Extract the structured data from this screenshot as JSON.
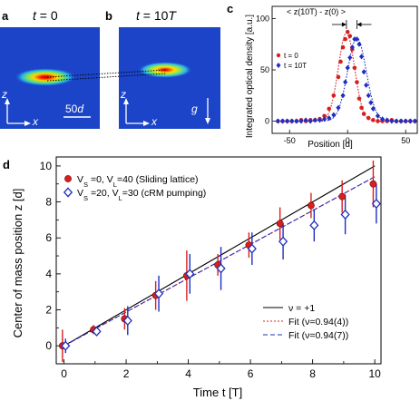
{
  "panel_a": {
    "letter": "a",
    "title_var": "t",
    "title_val": " = 0",
    "axis_z": "z",
    "axis_x": "x",
    "scale_num": "50",
    "scale_unit": "d"
  },
  "panel_b": {
    "letter": "b",
    "title_var": "t",
    "title_val": " = 10",
    "title_unit": "T",
    "axis_z": "z",
    "axis_x": "x",
    "gravity_label": "g"
  },
  "chart_data": [
    {
      "id": "c",
      "type": "line",
      "letter": "c",
      "annotation": "< z(10T) - z(0) >",
      "xlabel": "Position [d]",
      "ylabel": "Integrated optical density [a.u.]",
      "xlim": [
        -65,
        60
      ],
      "ylim": [
        -12,
        112
      ],
      "xticks": [
        -50,
        0,
        50
      ],
      "yticks": [
        0,
        50,
        100
      ],
      "grid": false,
      "legend_position": "top-left",
      "colors": {
        "t0": "#d62020",
        "t10": "#1f2fc0"
      },
      "series": [
        {
          "name": "t = 0",
          "key": "t0",
          "points": [
            [
              -60,
              0
            ],
            [
              -56,
              0
            ],
            [
              -52,
              0
            ],
            [
              -48,
              0
            ],
            [
              -44,
              0
            ],
            [
              -40,
              1
            ],
            [
              -36,
              0
            ],
            [
              -32,
              1
            ],
            [
              -28,
              1
            ],
            [
              -24,
              2
            ],
            [
              -20,
              5
            ],
            [
              -16,
              12
            ],
            [
              -12,
              25
            ],
            [
              -8,
              43
            ],
            [
              -6,
              58
            ],
            [
              -4,
              72
            ],
            [
              -2,
              80
            ],
            [
              0,
              87
            ],
            [
              2,
              83
            ],
            [
              4,
              70
            ],
            [
              6,
              52
            ],
            [
              8,
              38
            ],
            [
              10,
              22
            ],
            [
              12,
              13
            ],
            [
              14,
              7
            ],
            [
              18,
              3
            ],
            [
              22,
              1
            ],
            [
              26,
              0
            ],
            [
              30,
              0
            ],
            [
              34,
              0
            ],
            [
              38,
              1
            ],
            [
              42,
              0
            ],
            [
              46,
              0
            ],
            [
              50,
              0
            ],
            [
              54,
              0
            ],
            [
              58,
              0
            ]
          ],
          "fit_center": -1,
          "fit_sigma": 7,
          "fit_amp": 86
        },
        {
          "name": "t = 10T",
          "key": "t10",
          "points": [
            [
              -60,
              0
            ],
            [
              -56,
              0
            ],
            [
              -52,
              0
            ],
            [
              -48,
              0
            ],
            [
              -44,
              0
            ],
            [
              -40,
              0
            ],
            [
              -36,
              1
            ],
            [
              -32,
              0
            ],
            [
              -28,
              1
            ],
            [
              -24,
              1
            ],
            [
              -20,
              2
            ],
            [
              -16,
              3
            ],
            [
              -12,
              6
            ],
            [
              -8,
              13
            ],
            [
              -4,
              25
            ],
            [
              -2,
              38
            ],
            [
              0,
              52
            ],
            [
              2,
              62
            ],
            [
              4,
              72
            ],
            [
              6,
              80
            ],
            [
              8,
              80
            ],
            [
              10,
              75
            ],
            [
              12,
              63
            ],
            [
              14,
              48
            ],
            [
              16,
              35
            ],
            [
              18,
              25
            ],
            [
              20,
              18
            ],
            [
              22,
              12
            ],
            [
              26,
              5
            ],
            [
              30,
              2
            ],
            [
              34,
              1
            ],
            [
              38,
              0
            ],
            [
              42,
              0
            ],
            [
              46,
              0
            ],
            [
              50,
              0
            ],
            [
              54,
              0
            ],
            [
              58,
              0
            ]
          ],
          "fit_center": 8,
          "fit_sigma": 8,
          "fit_amp": 81
        }
      ]
    },
    {
      "id": "d",
      "type": "scatter",
      "letter": "d",
      "xlabel": "Time t [T]",
      "ylabel": "Center of mass position z [d]",
      "xlim": [
        -0.25,
        10.2
      ],
      "ylim": [
        -1,
        10.5
      ],
      "xticks": [
        0,
        2,
        4,
        6,
        8,
        10
      ],
      "yticks": [
        0,
        2,
        4,
        6,
        8,
        10
      ],
      "grid": false,
      "legend_position": "top-left",
      "colors": {
        "sliding": "#d62020",
        "crm": "#1f2fc0",
        "ideal": "#000000"
      },
      "series": [
        {
          "key": "sliding",
          "label_parts": [
            "V",
            "S",
            " =0,  V",
            "L",
            "=40 (Sliding lattice)"
          ],
          "marker": "filled-circle",
          "x": [
            0,
            1,
            2,
            3,
            4,
            5,
            6,
            7,
            8,
            9,
            10
          ],
          "y": [
            0.0,
            0.9,
            1.5,
            2.8,
            3.9,
            4.5,
            5.6,
            6.8,
            7.8,
            8.3,
            9.0
          ],
          "err": [
            0.9,
            0.25,
            0.6,
            0.8,
            1.4,
            0.6,
            0.7,
            0.9,
            0.7,
            0.9,
            1.3
          ]
        },
        {
          "key": "crm",
          "label_parts": [
            "V",
            "S",
            " =20,  V",
            "L",
            "=30 (cRM pumping)"
          ],
          "marker": "open-diamond",
          "x": [
            0,
            1,
            2,
            3,
            4,
            5,
            6,
            7,
            8,
            9,
            10
          ],
          "y": [
            0.0,
            0.8,
            1.4,
            2.9,
            4.0,
            4.3,
            5.4,
            5.8,
            6.7,
            7.3,
            7.9
          ],
          "err": [
            0.4,
            0.25,
            0.8,
            1.0,
            1.1,
            1.2,
            0.9,
            1.0,
            0.9,
            1.1,
            1.1
          ]
        }
      ],
      "lines": [
        {
          "key": "ideal",
          "label": "ν = +1",
          "slope": 1.0,
          "style": "solid"
        },
        {
          "key": "sliding",
          "label": "Fit (ν=0.94(4))",
          "slope": 0.94,
          "style": "dotted"
        },
        {
          "key": "crm",
          "label": "Fit (ν=0.94(7))",
          "slope": 0.94,
          "style": "dashed"
        }
      ]
    }
  ]
}
